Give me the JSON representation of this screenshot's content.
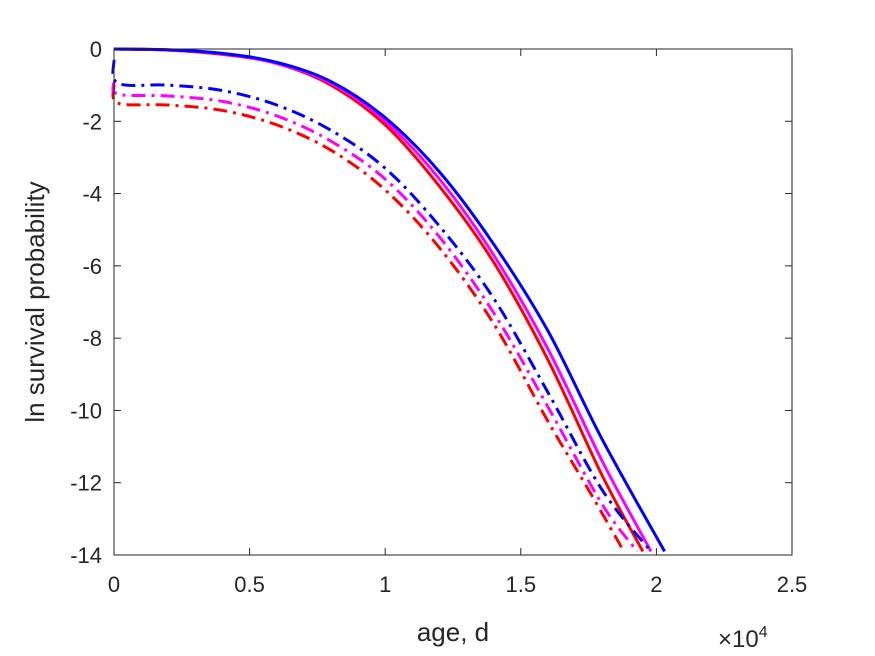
{
  "chart_data": {
    "type": "line",
    "xlabel": "age, d",
    "ylabel": "ln survival probability",
    "x_multiplier": {
      "base": "×10",
      "exponent": "4"
    },
    "xlim": [
      0,
      25000
    ],
    "ylim": [
      -14,
      0
    ],
    "xticks": [
      0,
      5000,
      10000,
      15000,
      20000,
      25000
    ],
    "xtick_labels": [
      "0",
      "0.5",
      "1",
      "1.5",
      "2",
      "2.5"
    ],
    "yticks": [
      0,
      -2,
      -4,
      -6,
      -8,
      -10,
      -12,
      -14
    ],
    "ytick_labels": [
      "0",
      "-2",
      "-4",
      "-6",
      "-8",
      "-10",
      "-12",
      "-14"
    ],
    "grid": false,
    "series": [
      {
        "color": "#ff0000",
        "style": "solid",
        "x": [
          0,
          2000,
          4000,
          6000,
          8000,
          10000,
          12000,
          14000,
          16000,
          18000,
          19500
        ],
        "y": [
          0,
          -0.03,
          -0.15,
          -0.4,
          -1.0,
          -2.1,
          -3.8,
          -5.9,
          -8.6,
          -11.8,
          -13.9
        ]
      },
      {
        "color": "#ff00ff",
        "style": "solid",
        "x": [
          0,
          2000,
          4000,
          6000,
          8000,
          10000,
          12000,
          14000,
          16000,
          18000,
          19800
        ],
        "y": [
          0,
          -0.03,
          -0.14,
          -0.4,
          -0.95,
          -2.0,
          -3.6,
          -5.7,
          -8.3,
          -11.4,
          -13.9
        ]
      },
      {
        "color": "#0000ff",
        "style": "solid",
        "x": [
          0,
          2000,
          4000,
          6000,
          8000,
          10000,
          12000,
          14000,
          16000,
          18000,
          20300
        ],
        "y": [
          0,
          -0.02,
          -0.12,
          -0.37,
          -0.9,
          -1.9,
          -3.4,
          -5.4,
          -7.8,
          -10.8,
          -13.9
        ]
      },
      {
        "color": "#ff0000",
        "style": "dashdot",
        "x": [
          0,
          150,
          2000,
          4000,
          6000,
          8000,
          10000,
          12000,
          14000,
          16000,
          17500,
          18800
        ],
        "y": [
          -1.0,
          -1.5,
          -1.55,
          -1.7,
          -2.1,
          -2.8,
          -3.9,
          -5.5,
          -7.6,
          -10.3,
          -12.2,
          -13.9
        ]
      },
      {
        "color": "#ff00ff",
        "style": "dashdot",
        "x": [
          0,
          150,
          2000,
          4000,
          6000,
          8000,
          10000,
          12000,
          14000,
          16000,
          18000,
          19300
        ],
        "y": [
          -0.9,
          -1.25,
          -1.3,
          -1.45,
          -1.85,
          -2.55,
          -3.6,
          -5.2,
          -7.3,
          -9.9,
          -12.6,
          -13.9
        ]
      },
      {
        "color": "#0000ff",
        "style": "dashdot",
        "x": [
          0,
          150,
          2000,
          4000,
          6000,
          8000,
          10000,
          12000,
          14000,
          16000,
          18000,
          19800
        ],
        "y": [
          -0.3,
          -0.95,
          -1.0,
          -1.15,
          -1.55,
          -2.25,
          -3.3,
          -4.9,
          -6.9,
          -9.5,
          -12.2,
          -13.9
        ]
      }
    ]
  }
}
